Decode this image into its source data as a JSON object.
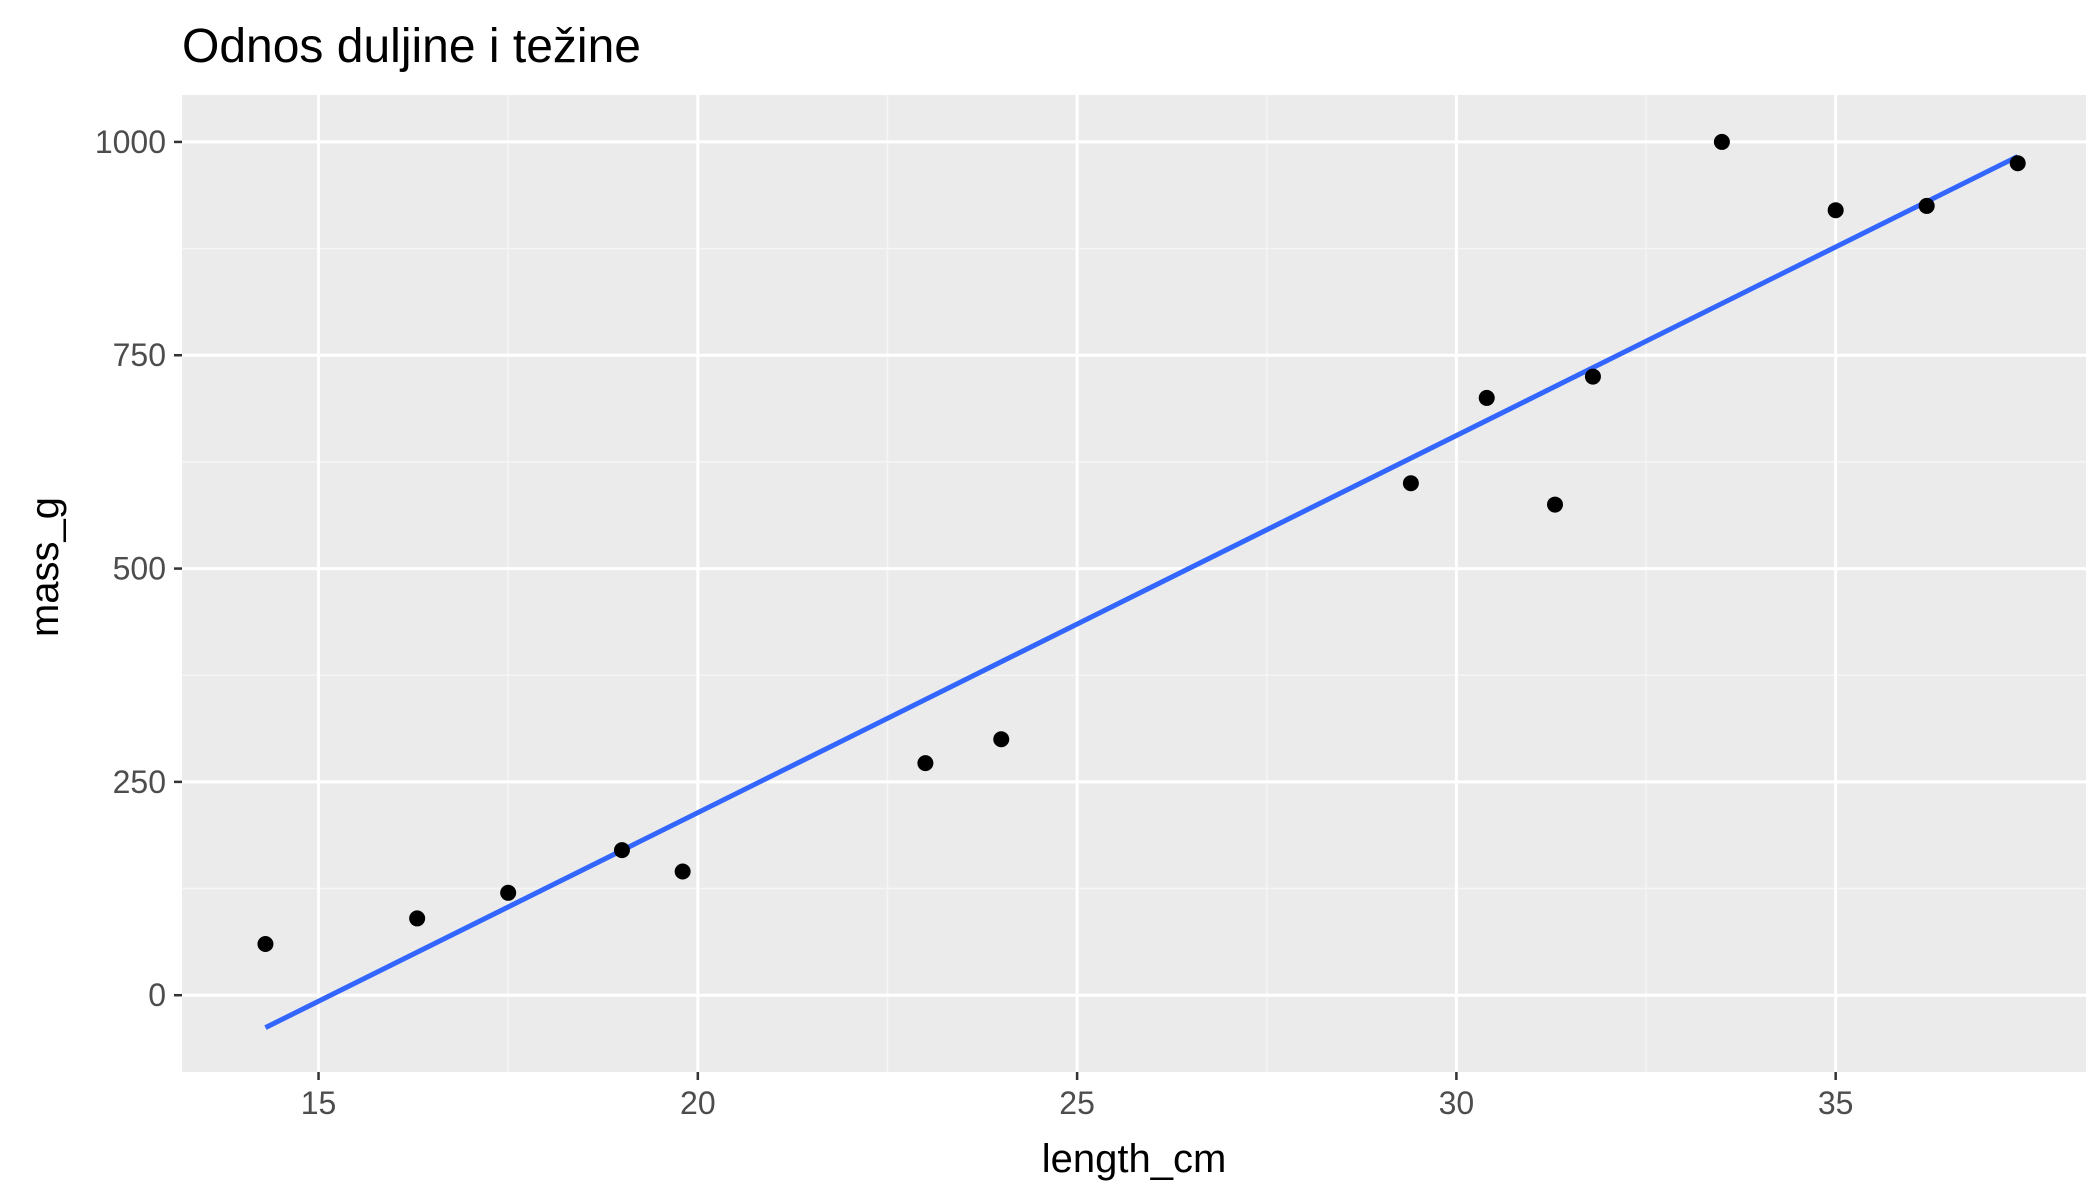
{
  "chart_data": {
    "type": "scatter",
    "title": "Odnos duljine i težine",
    "xlabel": "length_cm",
    "ylabel": "mass_g",
    "xlim": [
      13.2,
      38.3
    ],
    "ylim": [
      -90,
      1055
    ],
    "x_ticks": [
      15,
      20,
      25,
      30,
      35
    ],
    "y_ticks": [
      0,
      250,
      500,
      750,
      1000
    ],
    "x_tick_labels": [
      "15",
      "20",
      "25",
      "30",
      "35"
    ],
    "y_tick_labels": [
      "0",
      "250",
      "500",
      "750",
      "1000"
    ],
    "grid": true,
    "legend": "none",
    "series": [
      {
        "type": "scatter",
        "color": "#000000",
        "points": [
          {
            "x": 14.3,
            "y": 60
          },
          {
            "x": 16.3,
            "y": 90
          },
          {
            "x": 17.5,
            "y": 120
          },
          {
            "x": 19.0,
            "y": 170
          },
          {
            "x": 19.8,
            "y": 145
          },
          {
            "x": 23.0,
            "y": 272
          },
          {
            "x": 24.0,
            "y": 300
          },
          {
            "x": 29.4,
            "y": 600
          },
          {
            "x": 30.4,
            "y": 700
          },
          {
            "x": 31.3,
            "y": 575
          },
          {
            "x": 31.8,
            "y": 725
          },
          {
            "x": 33.5,
            "y": 1000
          },
          {
            "x": 35.0,
            "y": 920
          },
          {
            "x": 36.2,
            "y": 925
          },
          {
            "x": 37.4,
            "y": 975
          }
        ]
      },
      {
        "type": "line",
        "color": "#3366ff",
        "points": [
          {
            "x": 14.3,
            "y": -38
          },
          {
            "x": 37.4,
            "y": 983
          }
        ]
      }
    ],
    "colors": {
      "panel_background": "#ebebeb",
      "grid_major": "#ffffff",
      "grid_minor": "#f5f5f5",
      "tick_label": "#4d4d4d",
      "tick_mark": "#333333"
    }
  }
}
